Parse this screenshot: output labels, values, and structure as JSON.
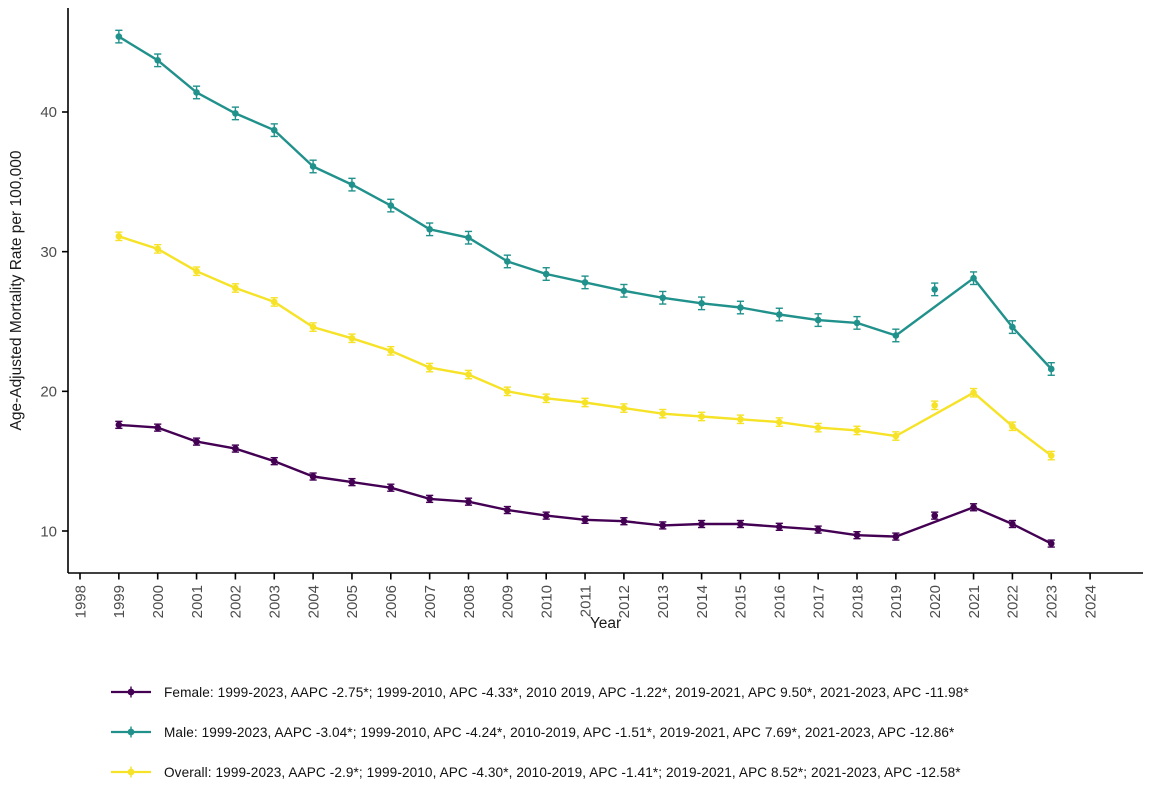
{
  "chart_data": {
    "type": "line",
    "title": "",
    "xlabel": "Year",
    "ylabel": "Age-Adjusted Mortality Rate per 100,000",
    "x_ticks": [
      1998,
      1999,
      2000,
      2001,
      2002,
      2003,
      2004,
      2005,
      2006,
      2007,
      2008,
      2009,
      2010,
      2011,
      2012,
      2013,
      2014,
      2015,
      2016,
      2017,
      2018,
      2019,
      2020,
      2021,
      2022,
      2023,
      2024
    ],
    "y_ticks": [
      10,
      20,
      30,
      40
    ],
    "xlim": [
      1997.5,
      2024.5
    ],
    "ylim": [
      7,
      47.5
    ],
    "grid": false,
    "legend_position": "bottom",
    "x": [
      1999,
      2000,
      2001,
      2002,
      2003,
      2004,
      2005,
      2006,
      2007,
      2008,
      2009,
      2010,
      2011,
      2012,
      2013,
      2014,
      2015,
      2016,
      2017,
      2018,
      2019,
      2020,
      2021,
      2022,
      2023
    ],
    "line_skips_year": 2020,
    "series": [
      {
        "name": "Female",
        "color": "#440154",
        "ci_half_width": 0.25,
        "values": [
          17.6,
          17.4,
          16.4,
          15.9,
          15.0,
          13.9,
          13.5,
          13.1,
          12.3,
          12.1,
          11.5,
          11.1,
          10.8,
          10.7,
          10.4,
          10.5,
          10.5,
          10.3,
          10.1,
          9.7,
          9.6,
          11.1,
          11.7,
          10.5,
          9.1
        ]
      },
      {
        "name": "Male",
        "color": "#21918c",
        "ci_half_width": 0.45,
        "values": [
          45.4,
          43.7,
          41.4,
          39.9,
          38.7,
          36.1,
          34.8,
          33.3,
          31.6,
          31.0,
          29.3,
          28.4,
          27.8,
          27.2,
          26.7,
          26.3,
          26.0,
          25.5,
          25.1,
          24.9,
          24.0,
          27.3,
          28.1,
          24.6,
          21.6
        ]
      },
      {
        "name": "Overall",
        "color": "#f6e226",
        "ci_half_width": 0.3,
        "values": [
          31.1,
          30.2,
          28.6,
          27.4,
          26.4,
          24.6,
          23.8,
          22.9,
          21.7,
          21.2,
          20.0,
          19.5,
          19.2,
          18.8,
          18.4,
          18.2,
          18.0,
          17.8,
          17.4,
          17.2,
          16.8,
          19.0,
          19.9,
          17.5,
          15.4
        ]
      }
    ],
    "colors": {
      "axis_line": "#000000",
      "tick_text": "#4d4d4d",
      "axis_title_text": "#1a1a1a"
    }
  },
  "legend": {
    "items": [
      {
        "name": "Female",
        "color": "#440154",
        "label": "Female: 1999-2023, AAPC -2.75*; 1999-2010, APC -4.33*, 2010 2019, APC -1.22*, 2019-2021, APC 9.50*, 2021-2023, APC -11.98*"
      },
      {
        "name": "Male",
        "color": "#21918c",
        "label": "Male: 1999-2023, AAPC -3.04*; 1999-2010, APC -4.24*, 2010-2019, APC -1.51*, 2019-2021, APC 7.69*, 2021-2023, APC -12.86*"
      },
      {
        "name": "Overall",
        "color": "#f6e226",
        "label": "Overall: 1999-2023, AAPC -2.9*; 1999-2010, APC -4.30*, 2010-2019, APC -1.41*; 2019-2021, APC 8.52*; 2021-2023, APC -12.58*"
      }
    ]
  }
}
